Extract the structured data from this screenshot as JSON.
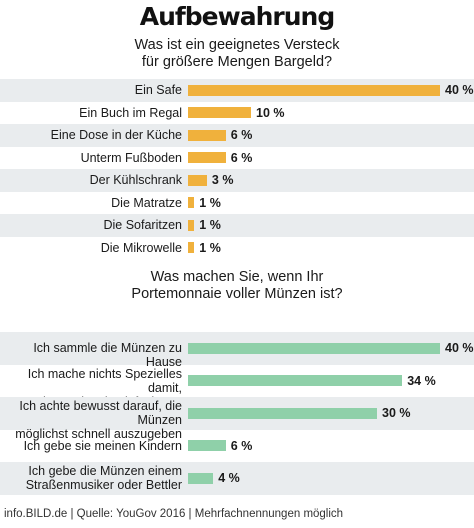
{
  "title": "Aufbewahrung",
  "footer": "info.BILD.de | Quelle: YouGov 2016 | Mehrfachnennungen möglich",
  "chart_data": [
    {
      "type": "bar",
      "orientation": "horizontal",
      "title": "Was ist ein geeignetes Versteck\nfür größere Mengen Bargeld?",
      "color": "#f0b13c",
      "row_shading": "#e9ecee",
      "value_suffix": " %",
      "xlim": [
        0,
        40
      ],
      "categories": [
        "Ein Safe",
        "Ein Buch im Regal",
        "Eine Dose in der Küche",
        "Unterm Fußboden",
        "Der Kühlschrank",
        "Die Matratze",
        "Die Sofaritzen",
        "Die Mikrowelle"
      ],
      "values": [
        40,
        10,
        6,
        6,
        3,
        1,
        1,
        1
      ]
    },
    {
      "type": "bar",
      "orientation": "horizontal",
      "title": "Was machen Sie, wenn Ihr\nPortemonnaie voller Münzen ist?",
      "color": "#8fd0a9",
      "row_shading": "#e9ecee",
      "value_suffix": " %",
      "xlim": [
        0,
        40
      ],
      "categories": [
        "Ich sammle die Münzen zu Hause",
        "Ich mache nichts Spezielles damit,\nsondern gebe sie einfach aus",
        "Ich achte bewusst darauf, die Münzen\nmöglichst schnell auszugeben",
        "Ich gebe sie meinen Kindern",
        "Ich gebe die Münzen einem\nStraßenmusiker oder Bettler"
      ],
      "values": [
        40,
        34,
        30,
        6,
        4
      ]
    }
  ]
}
